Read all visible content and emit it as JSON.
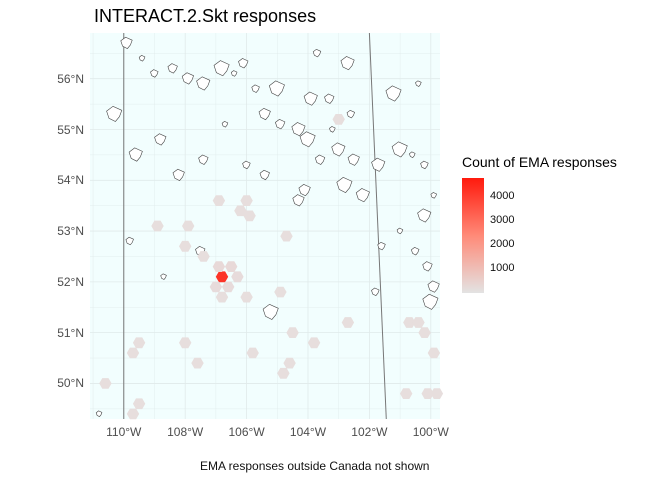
{
  "title": "INTERACT.2.Skt responses",
  "caption": "EMA responses outside Canada not shown",
  "colors": {
    "panel": "#f2fefe",
    "grid": "#e0eaea",
    "hex_low": "#e6e6e6",
    "hex_high": "#ff1a0d",
    "outline": "#444444"
  },
  "axes": {
    "x_ticks": [
      "110°W",
      "108°W",
      "106°W",
      "104°W",
      "102°W",
      "100°W"
    ],
    "y_ticks": [
      "56°N",
      "55°N",
      "54°N",
      "53°N",
      "52°N",
      "51°N",
      "50°N"
    ],
    "lon_range": [
      -111.1,
      -99.7
    ],
    "lat_range": [
      49.3,
      56.9
    ]
  },
  "legend": {
    "title": "Count of EMA responses",
    "ticks": [
      "4000",
      "3000",
      "2000",
      "1000"
    ],
    "range": [
      0,
      4800
    ]
  },
  "chart_data": {
    "type": "hexbin",
    "xlabel": "",
    "ylabel": "",
    "points": [
      {
        "lon": -106.8,
        "lat": 52.1,
        "count": 4200
      },
      {
        "lon": -106.5,
        "lat": 52.3,
        "count": 300
      },
      {
        "lon": -106.9,
        "lat": 52.3,
        "count": 300
      },
      {
        "lon": -106.3,
        "lat": 52.1,
        "count": 250
      },
      {
        "lon": -106.6,
        "lat": 51.9,
        "count": 250
      },
      {
        "lon": -107.0,
        "lat": 51.9,
        "count": 250
      },
      {
        "lon": -106.8,
        "lat": 51.7,
        "count": 200
      },
      {
        "lon": -107.4,
        "lat": 52.5,
        "count": 200
      },
      {
        "lon": -106.9,
        "lat": 53.6,
        "count": 200
      },
      {
        "lon": -106.0,
        "lat": 53.6,
        "count": 200
      },
      {
        "lon": -106.2,
        "lat": 53.4,
        "count": 200
      },
      {
        "lon": -105.9,
        "lat": 53.3,
        "count": 200
      },
      {
        "lon": -107.9,
        "lat": 53.1,
        "count": 200
      },
      {
        "lon": -108.9,
        "lat": 53.1,
        "count": 200
      },
      {
        "lon": -108.0,
        "lat": 52.7,
        "count": 200
      },
      {
        "lon": -104.7,
        "lat": 52.9,
        "count": 200
      },
      {
        "lon": -104.9,
        "lat": 51.8,
        "count": 200
      },
      {
        "lon": -104.5,
        "lat": 51.0,
        "count": 200
      },
      {
        "lon": -103.8,
        "lat": 50.8,
        "count": 200
      },
      {
        "lon": -104.6,
        "lat": 50.4,
        "count": 200
      },
      {
        "lon": -104.8,
        "lat": 50.2,
        "count": 200
      },
      {
        "lon": -105.8,
        "lat": 50.6,
        "count": 200
      },
      {
        "lon": -106.0,
        "lat": 51.7,
        "count": 200
      },
      {
        "lon": -107.6,
        "lat": 50.4,
        "count": 200
      },
      {
        "lon": -108.0,
        "lat": 50.8,
        "count": 200
      },
      {
        "lon": -109.5,
        "lat": 50.8,
        "count": 200
      },
      {
        "lon": -109.7,
        "lat": 50.6,
        "count": 200
      },
      {
        "lon": -110.6,
        "lat": 50.0,
        "count": 200
      },
      {
        "lon": -109.5,
        "lat": 49.6,
        "count": 200
      },
      {
        "lon": -109.7,
        "lat": 49.4,
        "count": 200
      },
      {
        "lon": -103.0,
        "lat": 55.2,
        "count": 200
      },
      {
        "lon": -102.7,
        "lat": 51.2,
        "count": 200
      },
      {
        "lon": -100.7,
        "lat": 51.2,
        "count": 200
      },
      {
        "lon": -100.4,
        "lat": 51.2,
        "count": 200
      },
      {
        "lon": -100.2,
        "lat": 51.0,
        "count": 200
      },
      {
        "lon": -99.9,
        "lat": 50.6,
        "count": 200
      },
      {
        "lon": -100.8,
        "lat": 49.8,
        "count": 200
      },
      {
        "lon": -100.1,
        "lat": 49.8,
        "count": 200
      },
      {
        "lon": -99.8,
        "lat": 49.8,
        "count": 200
      }
    ]
  }
}
